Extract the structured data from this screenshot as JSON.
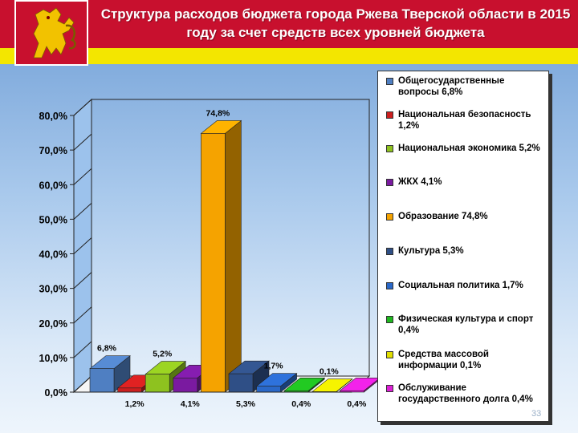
{
  "header": {
    "title": "Структура расходов бюджета города Ржева Тверской области в 2015 году за счет средств всех уровней бюджета"
  },
  "page_number": "33",
  "colors": {
    "header_red": "#c8102e",
    "header_yellow": "#f3e600"
  },
  "chart_data": {
    "type": "bar",
    "title": "",
    "xlabel": "",
    "ylabel": "",
    "ylim": [
      0,
      80
    ],
    "yticks": [
      "0,0%",
      "10,0%",
      "20,0%",
      "30,0%",
      "40,0%",
      "50,0%",
      "60,0%",
      "70,0%",
      "80,0%"
    ],
    "grid": false,
    "legend_position": "right",
    "categories": [
      "Общегосударственные вопросы 6,8%",
      "Национальная безопасность 1,2%",
      "Национальная экономика 5,2%",
      "ЖКХ 4,1%",
      "Образование 74,8%",
      "Культура 5,3%",
      "Социальная политика 1,7%",
      "Физическая культура и спорт 0,4%",
      "Средства массовой информации 0,1%",
      "Обслуживание государственного долга 0,4%"
    ],
    "values": [
      6.8,
      1.2,
      5.2,
      4.1,
      74.8,
      5.3,
      1.7,
      0.4,
      0.1,
      0.4
    ],
    "value_labels": [
      "6,8%",
      "1,2%",
      "5,2%",
      "4,1%",
      "74,8%",
      "5,3%",
      "1,7%",
      "0,4%",
      "0,1%",
      "0,4%"
    ],
    "colors": [
      "#4f7fc2",
      "#cc1f1f",
      "#8ec21f",
      "#7a1aa0",
      "#f5a300",
      "#2f4f86",
      "#2a68c8",
      "#1fb81f",
      "#e0de00",
      "#dd1fd6"
    ]
  }
}
